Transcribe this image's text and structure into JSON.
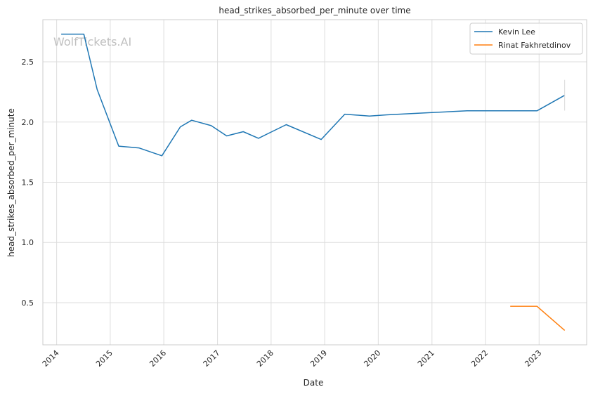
{
  "chart_data": {
    "type": "line",
    "title": "head_strikes_absorbed_per_minute over time",
    "xlabel": "Date",
    "ylabel": "head_strikes_absorbed_per_minute",
    "watermark": "WolfTickets.AI",
    "x_ticks": [
      "2014",
      "2015",
      "2016",
      "2017",
      "2018",
      "2019",
      "2020",
      "2021",
      "2022",
      "2023"
    ],
    "y_ticks": [
      "0.5",
      "1.0",
      "1.5",
      "2.0",
      "2.5"
    ],
    "xlim": [
      "2013-09-29",
      "2023-11-21"
    ],
    "ylim": [
      0.15,
      2.85
    ],
    "grid": true,
    "legend_position": "top-right",
    "series": [
      {
        "name": "Kevin Lee",
        "color": "#1f77b4",
        "points": [
          [
            "2014-02-01",
            2.73
          ],
          [
            "2014-07-05",
            2.73
          ],
          [
            "2014-10-04",
            2.27
          ],
          [
            "2015-02-28",
            1.8
          ],
          [
            "2015-07-15",
            1.785
          ],
          [
            "2015-12-19",
            1.72
          ],
          [
            "2016-04-23",
            1.96
          ],
          [
            "2016-07-09",
            2.015
          ],
          [
            "2016-11-19",
            1.97
          ],
          [
            "2017-03-04",
            1.885
          ],
          [
            "2017-06-25",
            1.92
          ],
          [
            "2017-10-07",
            1.865
          ],
          [
            "2018-04-14",
            1.978
          ],
          [
            "2018-12-08",
            1.855
          ],
          [
            "2019-05-18",
            2.065
          ],
          [
            "2019-11-02",
            2.05
          ],
          [
            "2020-02-29",
            2.06
          ],
          [
            "2021-01-23",
            2.08
          ],
          [
            "2021-08-28",
            2.093
          ],
          [
            "2022-12-17",
            2.093
          ],
          [
            "2023-06-24",
            2.222
          ]
        ],
        "error_bar": {
          "x": "2023-06-24",
          "low": 2.095,
          "high": 2.35
        }
      },
      {
        "name": "Rinat Fakhretdinov",
        "color": "#ff7f0e",
        "points": [
          [
            "2022-06-18",
            0.47
          ],
          [
            "2022-12-17",
            0.47
          ],
          [
            "2023-06-24",
            0.27
          ]
        ]
      }
    ]
  }
}
